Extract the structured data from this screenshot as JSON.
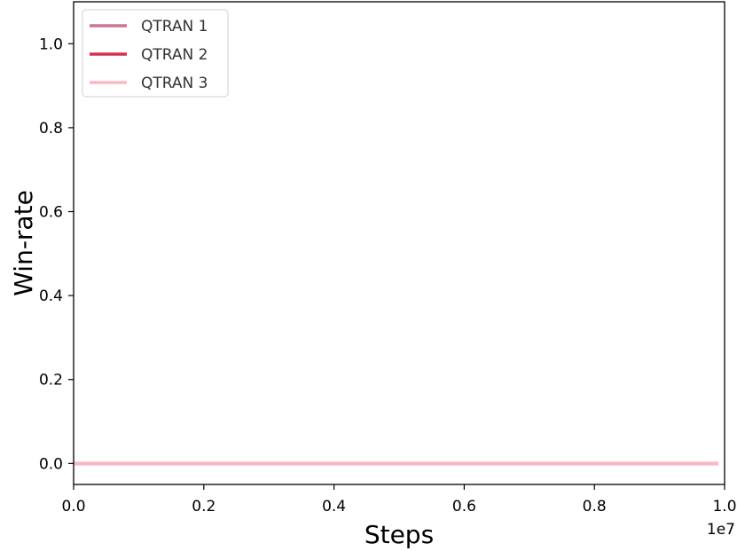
{
  "chart_data": {
    "type": "line",
    "xlabel": "Steps",
    "ylabel": "Win-rate",
    "x_offset_label": "1e7",
    "xlim": [
      0.0,
      1.0
    ],
    "ylim": [
      -0.05,
      1.1
    ],
    "x_ticks": [
      0.0,
      0.2,
      0.4,
      0.6,
      0.8,
      1.0
    ],
    "x_tick_labels": [
      "0.0",
      "0.2",
      "0.4",
      "0.6",
      "0.8",
      "1.0"
    ],
    "y_ticks": [
      0.0,
      0.2,
      0.4,
      0.6,
      0.8,
      1.0
    ],
    "y_tick_labels": [
      "0.0",
      "0.2",
      "0.4",
      "0.6",
      "0.8",
      "1.0"
    ],
    "grid": false,
    "legend_position": "top-left",
    "series": [
      {
        "name": "QTRAN 1",
        "color": "#cc7399",
        "x": [
          0.0,
          0.99
        ],
        "values": [
          0.0,
          0.0
        ]
      },
      {
        "name": "QTRAN 2",
        "color": "#d42e50",
        "x": [
          0.0,
          0.99
        ],
        "values": [
          0.0,
          0.0
        ]
      },
      {
        "name": "QTRAN 3",
        "color": "#fbb8c4",
        "x": [
          0.0,
          0.99
        ],
        "values": [
          0.0,
          0.0
        ]
      }
    ]
  }
}
